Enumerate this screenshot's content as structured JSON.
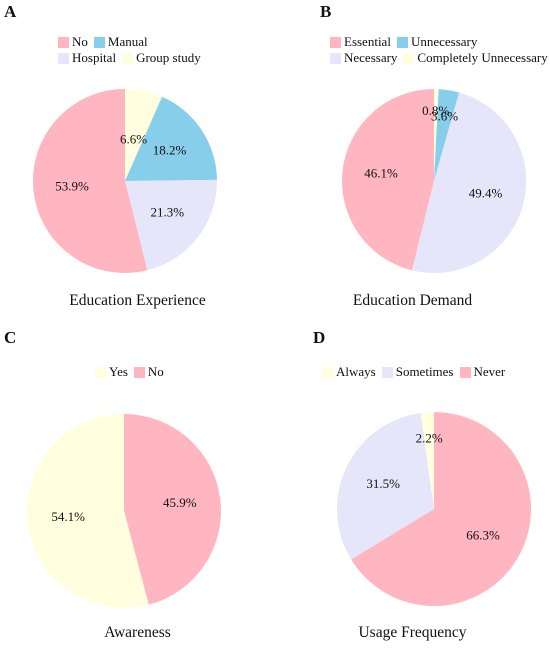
{
  "chart_data": [
    {
      "type": "pie",
      "panel_label": "A",
      "title": "Education Experience",
      "slices": [
        {
          "label": "No",
          "value": 53.9,
          "text": "53.9%",
          "color": "#ffb6c1"
        },
        {
          "label": "Manual",
          "value": 18.2,
          "text": "18.2%",
          "color": "#87ceeb"
        },
        {
          "label": "Hospital",
          "value": 21.3,
          "text": "21.3%",
          "color": "#e6e6fa"
        },
        {
          "label": "Group study",
          "value": 6.6,
          "text": "6.6%",
          "color": "#ffffe0"
        }
      ],
      "slice_order": [
        "Group study",
        "Manual",
        "Hospital",
        "No"
      ],
      "legend_rows": [
        [
          "No",
          "Manual"
        ],
        [
          "Hospital",
          "Group study"
        ]
      ],
      "legend_position": "top"
    },
    {
      "type": "pie",
      "panel_label": "B",
      "title": "Education Demand",
      "slices": [
        {
          "label": "Essential",
          "value": 46.1,
          "text": "46.1%",
          "color": "#ffb6c1"
        },
        {
          "label": "Unnecessary",
          "value": 3.6,
          "text": "3.6%",
          "color": "#87ceeb"
        },
        {
          "label": "Necessary",
          "value": 49.4,
          "text": "49.4%",
          "color": "#e6e6fa"
        },
        {
          "label": "Completely Unnecessary",
          "value": 0.8,
          "text": "0.8%",
          "color": "#ffffe0"
        }
      ],
      "slice_order": [
        "Completely Unnecessary",
        "Unnecessary",
        "Necessary",
        "Essential"
      ],
      "legend_rows": [
        [
          "Essential",
          "Unnecessary"
        ],
        [
          "Necessary",
          "Completely Unnecessary"
        ]
      ],
      "legend_position": "top"
    },
    {
      "type": "pie",
      "panel_label": "C",
      "title": "Awareness",
      "slices": [
        {
          "label": "Yes",
          "value": 54.1,
          "text": "54.1%",
          "color": "#ffffe0"
        },
        {
          "label": "No",
          "value": 45.9,
          "text": "45.9%",
          "color": "#ffb6c1"
        }
      ],
      "slice_order": [
        "No",
        "Yes"
      ],
      "legend_rows": [
        [
          "Yes",
          "No"
        ]
      ],
      "legend_position": "top"
    },
    {
      "type": "pie",
      "panel_label": "D",
      "title": "Usage Frequency",
      "slices": [
        {
          "label": "Always",
          "value": 2.2,
          "text": "2.2%",
          "color": "#ffffe0"
        },
        {
          "label": "Sometimes",
          "value": 31.5,
          "text": "31.5%",
          "color": "#e6e6fa"
        },
        {
          "label": "Never",
          "value": 66.3,
          "text": "66.3%",
          "color": "#ffb6c1"
        }
      ],
      "slice_order": [
        "Never",
        "Sometimes",
        "Always"
      ],
      "legend_rows": [
        [
          "Always",
          "Sometimes",
          "Never"
        ]
      ],
      "legend_position": "top"
    }
  ]
}
